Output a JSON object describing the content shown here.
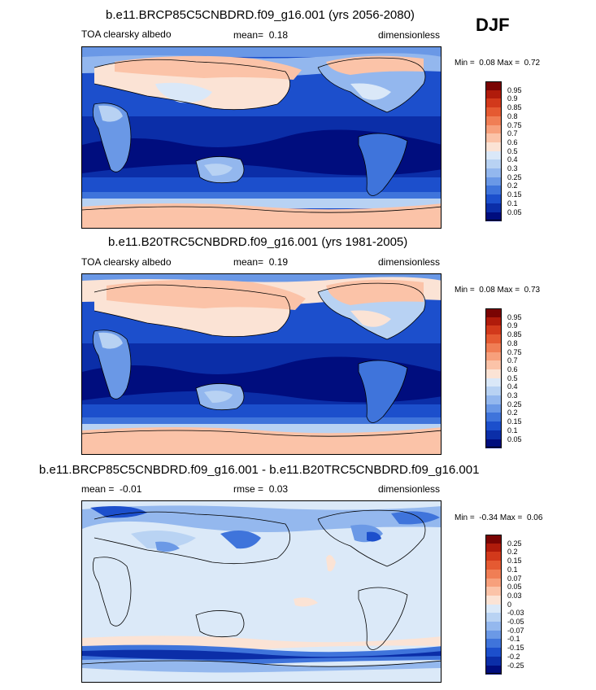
{
  "season": "DJF",
  "panels": [
    {
      "title": "b.e11.BRCP85C5CNBDRD.f09_g16.001 (yrs 2056-2080)",
      "variable": "TOA clearsky albedo",
      "stat_label": "mean=",
      "stat_value": "0.18",
      "units": "dimensionless",
      "min_label": "Min =",
      "min_value": "0.08",
      "max_label": "Max =",
      "max_value": "0.72",
      "colorbar_labels": [
        "0.95",
        "0.9",
        "0.85",
        "0.8",
        "0.75",
        "0.7",
        "0.6",
        "0.5",
        "0.4",
        "0.3",
        "0.25",
        "0.2",
        "0.15",
        "0.1",
        "0.05"
      ]
    },
    {
      "title": "b.e11.B20TRC5CNBDRD.f09_g16.001 (yrs 1981-2005)",
      "variable": "TOA clearsky albedo",
      "stat_label": "mean=",
      "stat_value": "0.19",
      "units": "dimensionless",
      "min_label": "Min =",
      "min_value": "0.08",
      "max_label": "Max =",
      "max_value": "0.73",
      "colorbar_labels": [
        "0.95",
        "0.9",
        "0.85",
        "0.8",
        "0.75",
        "0.7",
        "0.6",
        "0.5",
        "0.4",
        "0.3",
        "0.25",
        "0.2",
        "0.15",
        "0.1",
        "0.05"
      ]
    },
    {
      "title": "b.e11.BRCP85C5CNBDRD.f09_g16.001 - b.e11.B20TRC5CNBDRD.f09_g16.001",
      "stat_label": "mean =",
      "stat_value": "-0.01",
      "rmse_label": "rmse =",
      "rmse_value": "0.03",
      "units": "dimensionless",
      "min_label": "Min =",
      "min_value": "-0.34",
      "max_label": "Max =",
      "max_value": "0.06",
      "colorbar_labels": [
        "0.25",
        "0.2",
        "0.15",
        "0.1",
        "0.07",
        "0.05",
        "0.03",
        "0",
        "-0.03",
        "-0.05",
        "-0.07",
        "-0.1",
        "-0.15",
        "-0.2",
        "-0.25"
      ]
    }
  ],
  "colors": {
    "abs_scale": [
      "#7a0403",
      "#b01b0b",
      "#d2391b",
      "#e55a32",
      "#f07e55",
      "#f7a07c",
      "#fbc3a8",
      "#fbe3d5",
      "#dae8f8",
      "#b8d2f3",
      "#93b7ee",
      "#6a98e6",
      "#3f74db",
      "#1c4fcc",
      "#0b2ea8",
      "#000d7e"
    ],
    "diff_scale": [
      "#7a0403",
      "#b01b0b",
      "#d2391b",
      "#e55a32",
      "#f07e55",
      "#f7a07c",
      "#fbc3a8",
      "#fbe3d5",
      "#dbe9f8",
      "#b9d3f3",
      "#94b8ee",
      "#6b99e6",
      "#3f74db",
      "#1c4fcc",
      "#0b2ea8",
      "#000d7e"
    ]
  }
}
